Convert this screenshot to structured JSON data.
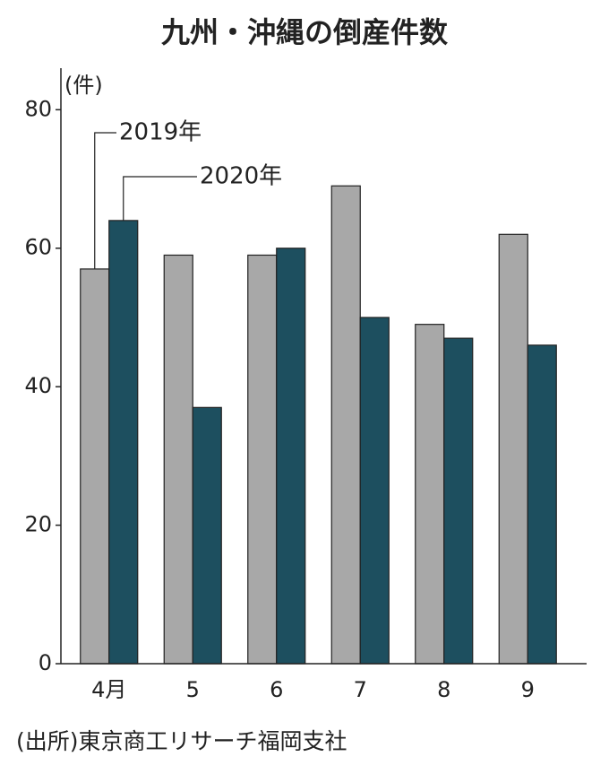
{
  "chart_data": {
    "type": "bar",
    "title": "九州・沖縄の倒産件数",
    "y_label": "(件)",
    "categories": [
      "4月",
      "5",
      "6",
      "7",
      "8",
      "9"
    ],
    "series": [
      {
        "name": "2019年",
        "color": "#a8a8a8",
        "values": [
          57,
          59,
          59,
          69,
          49,
          62
        ]
      },
      {
        "name": "2020年",
        "color": "#1d4f5f",
        "values": [
          64,
          37,
          60,
          50,
          47,
          46
        ]
      }
    ],
    "ylim": [
      0,
      86
    ],
    "yticks": [
      0,
      20,
      40,
      60,
      80
    ],
    "source": "(出所)東京商工リサーチ福岡支社"
  }
}
